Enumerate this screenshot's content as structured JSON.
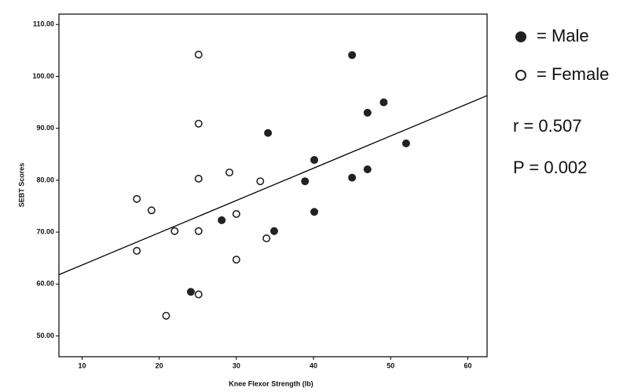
{
  "chart_data": {
    "type": "scatter",
    "x_label": "Knee Flexor Strength (lb)",
    "y_label": "SEBT Scores",
    "xlim": [
      7,
      62.5
    ],
    "ylim": [
      46,
      112
    ],
    "xticks": [
      10,
      20,
      30,
      40,
      50,
      60
    ],
    "yticks": [
      {
        "value": 50,
        "label": "50.00"
      },
      {
        "value": 60,
        "label": "60.00"
      },
      {
        "value": 70,
        "label": "70.00"
      },
      {
        "value": 80,
        "label": "80.00"
      },
      {
        "value": 90,
        "label": "90.00"
      },
      {
        "value": 100,
        "label": "100.00"
      },
      {
        "value": 110,
        "label": "110.00"
      }
    ],
    "series": [
      {
        "name": "= Male",
        "color": "#222222",
        "filled": true,
        "x": [
          45.0,
          47.0,
          49.1,
          52.0,
          34.1,
          40.1,
          38.9,
          45.0,
          47.0,
          40.1,
          28.1,
          34.9,
          24.1
        ],
        "values": [
          104.1,
          93.0,
          95.0,
          87.1,
          89.1,
          83.9,
          79.8,
          80.5,
          82.1,
          73.9,
          72.3,
          70.2,
          58.5
        ]
      },
      {
        "name": "= Female",
        "color": "#222222",
        "filled": false,
        "x": [
          25.1,
          25.1,
          25.1,
          25.1,
          25.1,
          17.1,
          19.0,
          22.0,
          17.1,
          29.1,
          30.0,
          33.1,
          30.0,
          33.9,
          20.9
        ],
        "values": [
          104.2,
          90.9,
          80.3,
          70.2,
          58.0,
          76.4,
          74.2,
          70.2,
          66.4,
          81.5,
          73.5,
          79.8,
          64.7,
          68.8,
          53.9
        ]
      }
    ],
    "fit_line": {
      "x": [
        7,
        62.5
      ],
      "y": [
        61.8,
        96.3
      ]
    },
    "annotations": [
      "r = 0.507",
      "P = 0.002"
    ]
  }
}
